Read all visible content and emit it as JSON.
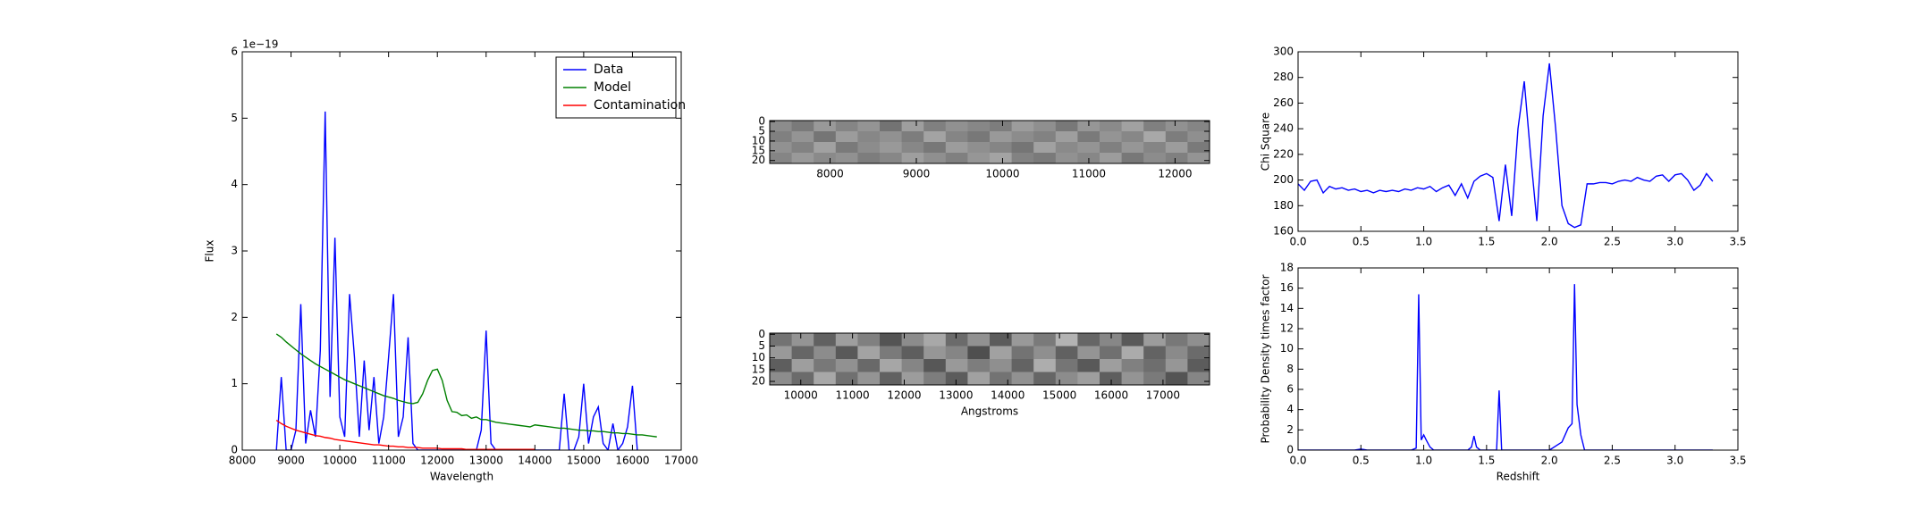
{
  "chart_data": [
    {
      "type": "line",
      "xlabel": "Wavelength",
      "ylabel": "Flux",
      "y_offset_label": "1e−19",
      "xlim": [
        8000,
        17000
      ],
      "xticks": [
        8000,
        9000,
        10000,
        11000,
        12000,
        13000,
        14000,
        15000,
        16000,
        17000
      ],
      "ylim": [
        0,
        6
      ],
      "yticks": [
        0,
        1,
        2,
        3,
        4,
        5,
        6
      ],
      "legend": "upper right",
      "x": [
        8700,
        8800,
        8900,
        9000,
        9100,
        9200,
        9300,
        9400,
        9500,
        9600,
        9700,
        9800,
        9900,
        10000,
        10100,
        10200,
        10300,
        10400,
        10500,
        10600,
        10700,
        10800,
        10900,
        11000,
        11100,
        11200,
        11300,
        11400,
        11500,
        11600,
        11700,
        11800,
        11900,
        12000,
        12100,
        12200,
        12300,
        12400,
        12500,
        12600,
        12700,
        12800,
        12900,
        13000,
        13100,
        13200,
        13300,
        13400,
        13500,
        13600,
        13700,
        13800,
        13900,
        14000,
        14100,
        14200,
        14300,
        14400,
        14500,
        14600,
        14700,
        14800,
        14900,
        15000,
        15100,
        15200,
        15300,
        15400,
        15500,
        15600,
        15700,
        15800,
        15900,
        16000,
        16100,
        16200,
        16300,
        16400,
        16500
      ],
      "series": [
        {
          "name": "Data",
          "color": "#0000ff",
          "values": [
            0,
            1.1,
            0,
            0,
            0.3,
            2.2,
            0.1,
            0.6,
            0.2,
            1.5,
            5.1,
            0.8,
            3.2,
            0.5,
            0.2,
            2.35,
            1.4,
            0.2,
            1.35,
            0.3,
            1.1,
            0.1,
            0.5,
            1.4,
            2.35,
            0.2,
            0.5,
            1.7,
            0.1,
            0,
            0,
            0,
            0,
            0,
            0,
            0,
            0,
            0,
            0,
            0,
            0,
            0,
            0.3,
            1.8,
            0.1,
            0,
            0,
            0,
            0,
            0,
            0,
            0,
            0,
            0,
            0,
            0,
            0,
            0,
            0,
            0.85,
            0,
            0,
            0.2,
            1.0,
            0.1,
            0.5,
            0.65,
            0.1,
            0,
            0.4,
            0,
            0.1,
            0.35,
            0.97,
            0,
            null,
            null,
            null,
            null
          ]
        },
        {
          "name": "Model",
          "color": "#008000",
          "values": [
            1.75,
            1.7,
            1.63,
            1.57,
            1.51,
            1.45,
            1.4,
            1.35,
            1.3,
            1.26,
            1.22,
            1.18,
            1.14,
            1.1,
            1.06,
            1.03,
            1.0,
            0.97,
            0.94,
            0.91,
            0.88,
            0.85,
            0.82,
            0.8,
            0.78,
            0.75,
            0.73,
            0.71,
            0.7,
            0.72,
            0.85,
            1.05,
            1.2,
            1.22,
            1.05,
            0.75,
            0.58,
            0.57,
            0.52,
            0.53,
            0.48,
            0.5,
            0.46,
            0.46,
            0.44,
            0.42,
            0.41,
            0.4,
            0.39,
            0.38,
            0.37,
            0.36,
            0.35,
            0.38,
            0.37,
            0.36,
            0.35,
            0.34,
            0.33,
            0.33,
            0.32,
            0.31,
            0.3,
            0.3,
            0.29,
            0.29,
            0.28,
            0.28,
            0.27,
            0.26,
            0.26,
            0.25,
            0.25,
            0.24,
            0.23,
            0.23,
            0.22,
            0.21,
            0.2
          ]
        },
        {
          "name": "Contamination",
          "color": "#ff0000",
          "values": [
            0.45,
            0.4,
            0.36,
            0.33,
            0.3,
            0.28,
            0.26,
            0.24,
            0.22,
            0.21,
            0.19,
            0.18,
            0.16,
            0.15,
            0.14,
            0.13,
            0.12,
            0.11,
            0.1,
            0.09,
            0.08,
            0.08,
            0.07,
            0.06,
            0.06,
            0.05,
            0.05,
            0.04,
            0.04,
            0.04,
            0.03,
            0.03,
            0.03,
            0.03,
            0.02,
            0.02,
            0.02,
            0.02,
            0.02,
            0.01,
            0.01,
            0.01,
            0.01,
            0.01,
            0.01,
            0.01,
            0.01,
            0.01,
            0.01,
            0.01,
            0.01,
            0.01,
            0.01,
            0.01,
            null,
            null,
            null,
            null,
            null,
            null,
            null,
            null,
            null,
            null,
            null,
            null,
            null,
            null,
            null,
            null,
            null,
            null,
            null,
            null,
            null,
            null,
            null,
            null,
            null
          ]
        }
      ]
    },
    {
      "type": "heatmap",
      "cmap": "gray",
      "xlim": [
        7300,
        12400
      ],
      "xticks": [
        8000,
        9000,
        10000,
        11000,
        12000
      ],
      "ylim": [
        21.5,
        -0.5
      ],
      "yticks": [
        0,
        5,
        10,
        15,
        20
      ],
      "z": [
        [
          0.55,
          0.48,
          0.6,
          0.52,
          0.58,
          0.45,
          0.62,
          0.5,
          0.57,
          0.53,
          0.49,
          0.61,
          0.56,
          0.47,
          0.59,
          0.54,
          0.63,
          0.5,
          0.57,
          0.52
        ],
        [
          0.5,
          0.58,
          0.46,
          0.61,
          0.53,
          0.57,
          0.49,
          0.64,
          0.52,
          0.47,
          0.6,
          0.55,
          0.51,
          0.62,
          0.48,
          0.58,
          0.53,
          0.66,
          0.49,
          0.56
        ],
        [
          0.57,
          0.51,
          0.63,
          0.48,
          0.55,
          0.6,
          0.53,
          0.47,
          0.61,
          0.56,
          0.52,
          0.46,
          0.63,
          0.54,
          0.58,
          0.5,
          0.59,
          0.52,
          0.61,
          0.48
        ],
        [
          0.52,
          0.6,
          0.54,
          0.57,
          0.49,
          0.53,
          0.62,
          0.56,
          0.5,
          0.59,
          0.64,
          0.51,
          0.48,
          0.57,
          0.53,
          0.61,
          0.47,
          0.55,
          0.5,
          0.58
        ]
      ]
    },
    {
      "type": "heatmap",
      "cmap": "gray",
      "xlabel": "Angstroms",
      "xlim": [
        9400,
        17900
      ],
      "xticks": [
        10000,
        11000,
        12000,
        13000,
        14000,
        15000,
        16000,
        17000
      ],
      "ylim": [
        21.5,
        -0.5
      ],
      "yticks": [
        0,
        5,
        10,
        15,
        20
      ],
      "z": [
        [
          0.45,
          0.58,
          0.38,
          0.62,
          0.5,
          0.33,
          0.55,
          0.66,
          0.42,
          0.57,
          0.36,
          0.6,
          0.48,
          0.7,
          0.4,
          0.53,
          0.35,
          0.61,
          0.47,
          0.56
        ],
        [
          0.6,
          0.4,
          0.55,
          0.35,
          0.64,
          0.48,
          0.37,
          0.59,
          0.52,
          0.31,
          0.63,
          0.45,
          0.56,
          0.38,
          0.58,
          0.44,
          0.67,
          0.39,
          0.54,
          0.42
        ],
        [
          0.37,
          0.62,
          0.47,
          0.57,
          0.41,
          0.65,
          0.52,
          0.34,
          0.6,
          0.49,
          0.56,
          0.39,
          0.68,
          0.46,
          0.35,
          0.62,
          0.5,
          0.43,
          0.59,
          0.36
        ],
        [
          0.55,
          0.42,
          0.66,
          0.44,
          0.58,
          0.38,
          0.61,
          0.49,
          0.36,
          0.63,
          0.45,
          0.57,
          0.4,
          0.55,
          0.62,
          0.37,
          0.58,
          0.48,
          0.33,
          0.52
        ]
      ]
    },
    {
      "type": "line",
      "ylabel": "Chi Square",
      "xlim": [
        0,
        3.5
      ],
      "xticks": [
        {
          "value": 0,
          "label": "0.0"
        },
        0.5,
        {
          "value": 1,
          "label": "1.0"
        },
        1.5,
        {
          "value": 2,
          "label": "2.0"
        },
        2.5,
        {
          "value": 3,
          "label": "3.0"
        },
        3.5
      ],
      "ylim": [
        160,
        300
      ],
      "yticks": [
        160,
        180,
        200,
        220,
        240,
        260,
        280,
        300
      ],
      "x": [
        0,
        0.05,
        0.1,
        0.15,
        0.2,
        0.25,
        0.3,
        0.35,
        0.4,
        0.45,
        0.5,
        0.55,
        0.6,
        0.65,
        0.7,
        0.75,
        0.8,
        0.85,
        0.9,
        0.95,
        1.0,
        1.05,
        1.1,
        1.15,
        1.2,
        1.25,
        1.3,
        1.35,
        1.4,
        1.45,
        1.5,
        1.55,
        1.6,
        1.65,
        1.7,
        1.75,
        1.8,
        1.85,
        1.9,
        1.95,
        2.0,
        2.05,
        2.1,
        2.15,
        2.2,
        2.25,
        2.3,
        2.35,
        2.4,
        2.45,
        2.5,
        2.55,
        2.6,
        2.65,
        2.7,
        2.75,
        2.8,
        2.85,
        2.9,
        2.95,
        3.0,
        3.05,
        3.1,
        3.15,
        3.2,
        3.25,
        3.3
      ],
      "series": [
        {
          "color": "#0000ff",
          "values": [
            197,
            192,
            199,
            200,
            190,
            195,
            193,
            194,
            192,
            193,
            191,
            192,
            190,
            192,
            191,
            192,
            191,
            193,
            192,
            194,
            193,
            195,
            191,
            194,
            196,
            188,
            197,
            186,
            199,
            203,
            205,
            202,
            168,
            212,
            172,
            240,
            277,
            220,
            168,
            250,
            291,
            240,
            180,
            166,
            163,
            165,
            197,
            197,
            198,
            198,
            197,
            199,
            200,
            199,
            202,
            200,
            199,
            203,
            204,
            199,
            204,
            205,
            200,
            192,
            196,
            205,
            199
          ]
        }
      ]
    },
    {
      "type": "line",
      "xlabel": "Redshift",
      "ylabel": "Probability Density times factor",
      "xlim": [
        0,
        3.5
      ],
      "xticks": [
        {
          "value": 0,
          "label": "0.0"
        },
        0.5,
        {
          "value": 1,
          "label": "1.0"
        },
        1.5,
        {
          "value": 2,
          "label": "2.0"
        },
        2.5,
        {
          "value": 3,
          "label": "3.0"
        },
        3.5
      ],
      "ylim": [
        0,
        18
      ],
      "yticks": [
        0,
        2,
        4,
        6,
        8,
        10,
        12,
        14,
        16,
        18
      ],
      "x": [
        0,
        0.45,
        0.5,
        0.55,
        0.9,
        0.94,
        0.96,
        0.98,
        1.0,
        1.02,
        1.05,
        1.08,
        1.35,
        1.38,
        1.4,
        1.42,
        1.45,
        1.58,
        1.6,
        1.62,
        1.65,
        2.0,
        2.1,
        2.15,
        2.18,
        2.2,
        2.22,
        2.25,
        2.28,
        2.35,
        3.3
      ],
      "series": [
        {
          "color": "#0000ff",
          "values": [
            0,
            0,
            0.1,
            0,
            0,
            0.2,
            15.4,
            1.0,
            1.5,
            1.0,
            0.3,
            0,
            0,
            0.3,
            1.4,
            0.3,
            0,
            0,
            5.9,
            0,
            0,
            0,
            0.8,
            2.2,
            2.6,
            16.4,
            4.5,
            1.5,
            0,
            0,
            0
          ]
        }
      ]
    }
  ]
}
